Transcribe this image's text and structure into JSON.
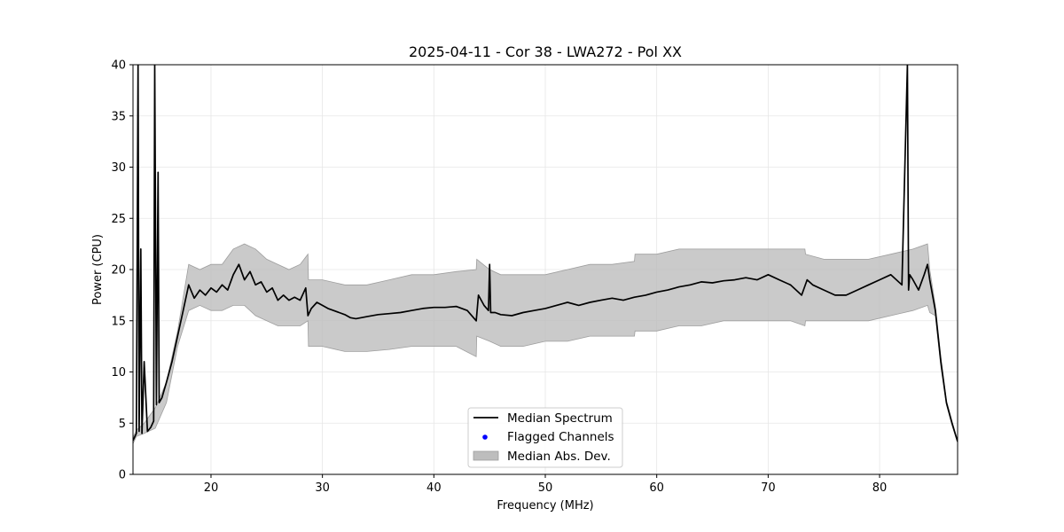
{
  "chart_data": {
    "type": "line",
    "title": "2025-04-11 - Cor 38 - LWA272 - Pol XX",
    "xlabel": "Frequency (MHz)",
    "ylabel": "Power (CPU)",
    "xlim": [
      13,
      87
    ],
    "ylim": [
      0,
      40
    ],
    "xticks": [
      20,
      30,
      40,
      50,
      60,
      70,
      80
    ],
    "yticks": [
      0,
      5,
      10,
      15,
      20,
      25,
      30,
      35,
      40
    ],
    "grid": true,
    "legend_position": "bottom-center",
    "legend": [
      {
        "label": "Median Spectrum",
        "kind": "line",
        "color": "#000000"
      },
      {
        "label": "Flagged Channels",
        "kind": "marker",
        "color": "#0000ff"
      },
      {
        "label": "Median Abs. Dev.",
        "kind": "band",
        "color": "#bdbdbd"
      }
    ],
    "series": [
      {
        "name": "Median Spectrum",
        "color": "#000000",
        "x": [
          13.0,
          13.3,
          13.45,
          13.55,
          13.7,
          13.8,
          14.0,
          14.3,
          14.6,
          14.85,
          14.95,
          15.1,
          15.25,
          15.35,
          15.6,
          16.0,
          16.5,
          17.0,
          17.5,
          18.0,
          18.5,
          19.0,
          19.5,
          20.0,
          20.5,
          21.0,
          21.5,
          22.0,
          22.5,
          23.0,
          23.5,
          24.0,
          24.5,
          25.0,
          25.5,
          26.0,
          26.5,
          27.0,
          27.5,
          28.0,
          28.5,
          28.7,
          29.0,
          29.5,
          30.0,
          30.5,
          31.0,
          31.5,
          32.0,
          32.5,
          33.0,
          34.0,
          35.0,
          36.0,
          37.0,
          38.0,
          39.0,
          40.0,
          41.0,
          42.0,
          43.0,
          43.8,
          44.0,
          44.5,
          44.9,
          45.0,
          45.1,
          45.5,
          46.0,
          47.0,
          48.0,
          49.0,
          50.0,
          51.0,
          52.0,
          53.0,
          54.0,
          55.0,
          56.0,
          57.0,
          58.0,
          59.0,
          60.0,
          61.0,
          62.0,
          63.0,
          64.0,
          65.0,
          66.0,
          67.0,
          68.0,
          69.0,
          70.0,
          71.0,
          72.0,
          73.0,
          73.5,
          74.0,
          75.0,
          76.0,
          77.0,
          78.0,
          79.0,
          80.0,
          81.0,
          82.0,
          82.5,
          82.6,
          82.7,
          83.0,
          83.5,
          84.0,
          84.3,
          84.5,
          85.0,
          85.5,
          86.0,
          86.5,
          87.0
        ],
        "y": [
          3.3,
          4.0,
          40.0,
          4.2,
          22.0,
          4.0,
          11.0,
          4.2,
          4.6,
          5.2,
          40.0,
          6.8,
          29.5,
          7.0,
          7.5,
          9.0,
          11.0,
          13.5,
          16.0,
          18.5,
          17.2,
          18.0,
          17.5,
          18.2,
          17.8,
          18.5,
          18.0,
          19.5,
          20.5,
          19.0,
          19.8,
          18.5,
          18.8,
          17.8,
          18.2,
          17.0,
          17.5,
          17.0,
          17.3,
          17.0,
          18.2,
          15.5,
          16.2,
          16.8,
          16.5,
          16.2,
          16.0,
          15.8,
          15.6,
          15.3,
          15.2,
          15.4,
          15.6,
          15.7,
          15.8,
          16.0,
          16.2,
          16.3,
          16.3,
          16.4,
          16.0,
          15.0,
          17.5,
          16.5,
          16.0,
          20.5,
          15.8,
          15.8,
          15.6,
          15.5,
          15.8,
          16.0,
          16.2,
          16.5,
          16.8,
          16.5,
          16.8,
          17.0,
          17.2,
          17.0,
          17.3,
          17.5,
          17.8,
          18.0,
          18.3,
          18.5,
          18.8,
          18.7,
          18.9,
          19.0,
          19.2,
          19.0,
          19.5,
          19.0,
          18.5,
          17.5,
          19.0,
          18.5,
          18.0,
          17.5,
          17.5,
          18.0,
          18.5,
          19.0,
          19.5,
          18.5,
          40.0,
          18.0,
          19.5,
          19.0,
          18.0,
          19.5,
          20.5,
          19.0,
          16.0,
          11.0,
          7.0,
          5.0,
          3.2
        ]
      }
    ],
    "band": {
      "name": "Median Abs. Dev.",
      "color": "#bdbdbd",
      "x": [
        13.0,
        13.3,
        14.0,
        15.0,
        16.0,
        17.0,
        18.0,
        19.0,
        20.0,
        21.0,
        22.0,
        23.0,
        24.0,
        25.0,
        26.0,
        27.0,
        28.0,
        28.7,
        28.75,
        30.0,
        32.0,
        34.0,
        36.0,
        38.0,
        40.0,
        42.0,
        43.8,
        43.85,
        45.0,
        46.0,
        48.0,
        50.0,
        52.0,
        54.0,
        56.0,
        58.0,
        58.05,
        60.0,
        62.0,
        64.0,
        66.0,
        68.0,
        70.0,
        72.0,
        73.3,
        73.35,
        75.0,
        77.0,
        79.0,
        81.0,
        83.0,
        84.3,
        84.5,
        85.0,
        85.5,
        86.0,
        86.5,
        87.0
      ],
      "upper": [
        3.6,
        4.3,
        5.0,
        6.5,
        9.0,
        14.0,
        20.5,
        20.0,
        20.5,
        20.5,
        22.0,
        22.5,
        22.0,
        21.0,
        20.5,
        20.0,
        20.5,
        21.5,
        19.0,
        19.0,
        18.5,
        18.5,
        19.0,
        19.5,
        19.5,
        19.8,
        20.0,
        21.0,
        20.0,
        19.5,
        19.5,
        19.5,
        20.0,
        20.5,
        20.5,
        20.8,
        21.5,
        21.5,
        22.0,
        22.0,
        22.0,
        22.0,
        22.0,
        22.0,
        22.0,
        21.5,
        21.0,
        21.0,
        21.0,
        21.5,
        22.0,
        22.5,
        20.0,
        16.5,
        11.5,
        7.2,
        5.2,
        3.3
      ],
      "lower": [
        3.0,
        3.7,
        4.0,
        4.5,
        7.0,
        12.5,
        16.0,
        16.5,
        16.0,
        16.0,
        16.5,
        16.5,
        15.5,
        15.0,
        14.5,
        14.5,
        14.5,
        15.0,
        12.5,
        12.5,
        12.0,
        12.0,
        12.2,
        12.5,
        12.5,
        12.5,
        11.5,
        13.5,
        13.0,
        12.5,
        12.5,
        13.0,
        13.0,
        13.5,
        13.5,
        13.5,
        14.0,
        14.0,
        14.5,
        14.5,
        15.0,
        15.0,
        15.0,
        15.0,
        14.5,
        15.0,
        15.0,
        15.0,
        15.0,
        15.5,
        16.0,
        16.5,
        15.8,
        15.5,
        10.5,
        6.8,
        4.8,
        3.1
      ]
    }
  }
}
